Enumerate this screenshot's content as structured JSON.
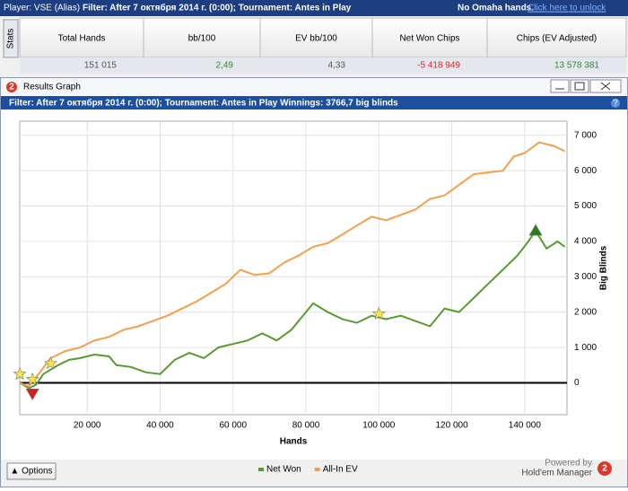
{
  "header": {
    "player": "Player: VSE (Alias)",
    "filter": "Filter: After 7 октября 2014 г. (0:00); Tournament: Antes in Play",
    "notice": "No Omaha hands.",
    "link": "Click here to unlock"
  },
  "stats": {
    "tab": "Stats",
    "columns": [
      "Total Hands",
      "bb/100",
      "EV bb/100",
      "Net Won Chips",
      "Chips (EV Adjusted)"
    ],
    "values": [
      "151 015",
      "2,49",
      "4,33",
      "-5 418 949",
      "13 578 381"
    ],
    "colors": [
      "#555555",
      "#2e8b2e",
      "#555555",
      "#e02020",
      "#2e8b2e"
    ]
  },
  "window": {
    "title": "Results Graph",
    "icon": "2",
    "filter": "Filter: After 7 октября 2014 г. (0:00); Tournament: Antes in Play  Winnings: 3766,7 big blinds",
    "help": "?",
    "options": "▲ Options",
    "powered": "Powered by",
    "brand": "Hold'em Manager"
  },
  "chart_data": {
    "type": "line",
    "xlabel": "Hands",
    "ylabel": "Big Blinds",
    "xlim": [
      1500,
      151600
    ],
    "ylim": [
      -900,
      7400
    ],
    "xticks": [
      {
        "value": 20000,
        "label": "20 000"
      },
      {
        "value": 40000,
        "label": "40 000"
      },
      {
        "value": 60000,
        "label": "60 000"
      },
      {
        "value": 80000,
        "label": "80 000"
      },
      {
        "value": 100000,
        "label": "100 000"
      },
      {
        "value": 120000,
        "label": "120 000"
      },
      {
        "value": 140000,
        "label": "140 000"
      }
    ],
    "yticks": [
      0,
      {
        "value": 1000,
        "label": "1 000"
      },
      {
        "value": 2000,
        "label": "2 000"
      },
      {
        "value": 3000,
        "label": "3 000"
      },
      {
        "value": 4000,
        "label": "4 000"
      },
      {
        "value": 5000,
        "label": "5 000"
      },
      {
        "value": 6000,
        "label": "6 000"
      },
      {
        "value": 7000,
        "label": "7 000"
      }
    ],
    "grid": true,
    "zero_line": true,
    "series": [
      {
        "name": "Net Won",
        "color": "#5a9a32",
        "x": [
          1500,
          4000,
          6000,
          8000,
          12000,
          15000,
          18000,
          22000,
          26000,
          28000,
          32000,
          36000,
          40000,
          44000,
          48000,
          52000,
          56000,
          60000,
          64000,
          68000,
          72000,
          76000,
          80000,
          82000,
          86000,
          90000,
          94000,
          98000,
          102000,
          106000,
          110000,
          114000,
          118000,
          122000,
          126000,
          130000,
          134000,
          138000,
          141000,
          143000,
          146000,
          149000,
          151000
        ],
        "values": [
          0,
          -150,
          -50,
          250,
          500,
          650,
          700,
          800,
          750,
          500,
          450,
          300,
          250,
          650,
          850,
          700,
          1000,
          1100,
          1200,
          1400,
          1200,
          1500,
          2000,
          2250,
          2000,
          1800,
          1700,
          1900,
          1800,
          1900,
          1750,
          1600,
          2100,
          2000,
          2400,
          2800,
          3200,
          3600,
          4000,
          4300,
          3800,
          4000,
          3850
        ]
      },
      {
        "name": "All-In EV",
        "color": "#f0a050",
        "x": [
          1500,
          4000,
          7000,
          10000,
          14000,
          18000,
          22000,
          26000,
          30000,
          34000,
          38000,
          42000,
          46000,
          50000,
          54000,
          58000,
          62000,
          66000,
          70000,
          74000,
          78000,
          82000,
          86000,
          90000,
          94000,
          98000,
          102000,
          106000,
          110000,
          114000,
          118000,
          122000,
          126000,
          130000,
          134000,
          137000,
          140000,
          144000,
          148000,
          151000
        ],
        "values": [
          0,
          -100,
          300,
          700,
          900,
          1000,
          1200,
          1300,
          1500,
          1600,
          1750,
          1900,
          2100,
          2300,
          2550,
          2800,
          3200,
          3050,
          3100,
          3400,
          3600,
          3850,
          3950,
          4200,
          4450,
          4700,
          4600,
          4750,
          4900,
          5200,
          5300,
          5600,
          5900,
          5950,
          6000,
          6400,
          6500,
          6800,
          6700,
          6550
        ]
      }
    ],
    "markers": [
      {
        "kind": "star",
        "color": "#f5e642",
        "x": 1500,
        "y": 250
      },
      {
        "kind": "star",
        "color": "#f5e642",
        "x": 5000,
        "y": 100
      },
      {
        "kind": "star",
        "color": "#f5e642",
        "x": 10000,
        "y": 550
      },
      {
        "kind": "star",
        "color": "#f5e642",
        "x": 100000,
        "y": 1950
      },
      {
        "kind": "up",
        "color": "#2e7d1e",
        "x": 143000,
        "y": 4300
      },
      {
        "kind": "down",
        "color": "#d02020",
        "x": 5000,
        "y": -300
      }
    ]
  }
}
